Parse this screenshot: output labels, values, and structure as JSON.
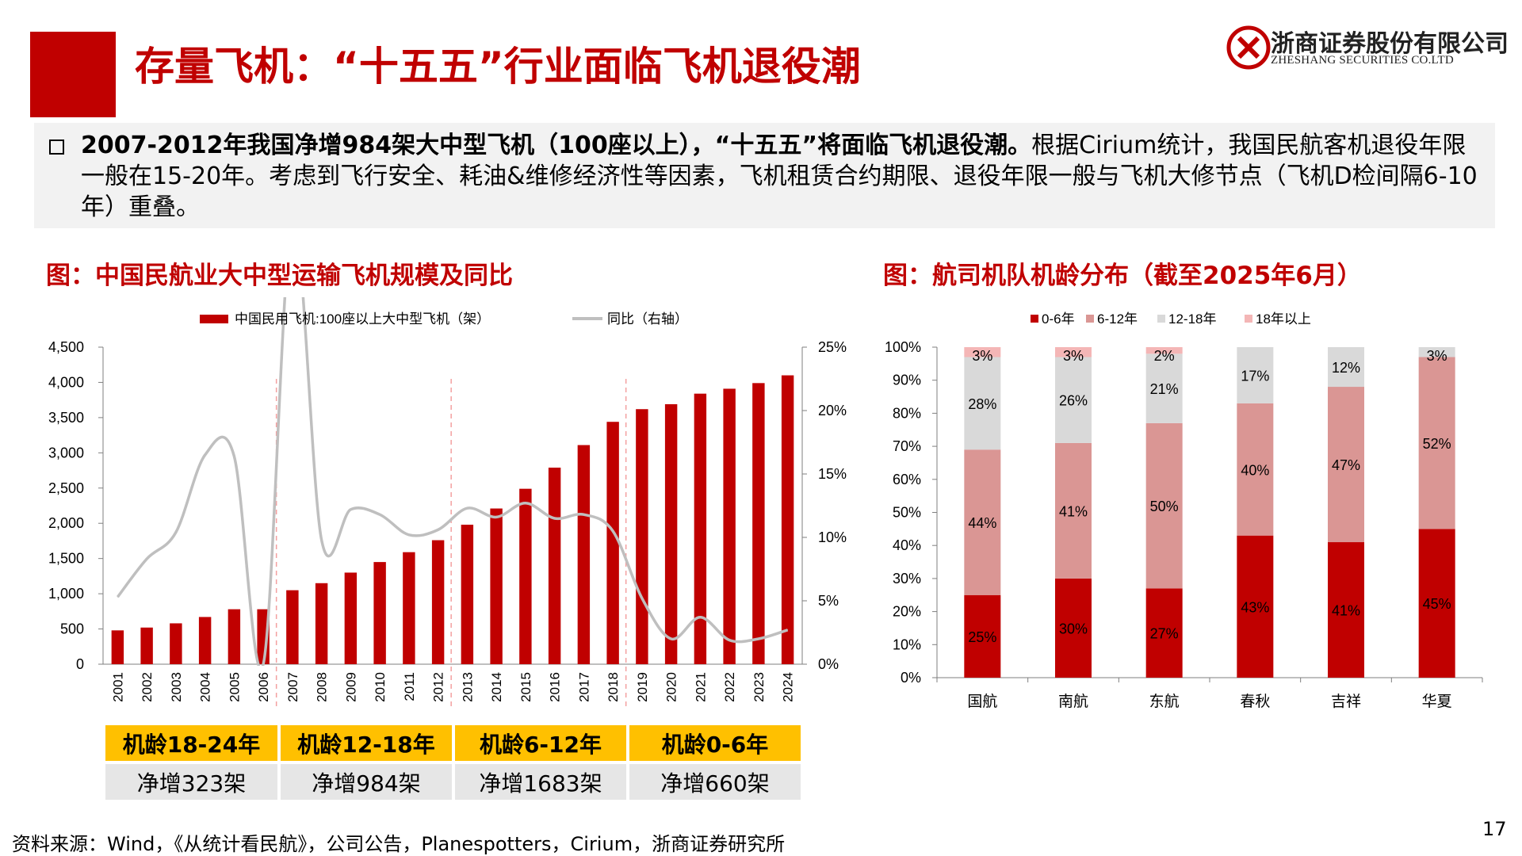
{
  "header": {
    "title": "存量飞机：“十五五”行业面临飞机退役潮",
    "logo_name": "浙商证券股份有限公司",
    "logo_en": "ZHESHANG SECURITIES CO.LTD"
  },
  "summary": {
    "bold": "2007-2012年我国净增984架大中型飞机（100座以上），“十五五”将面临飞机退役潮。",
    "text": "根据Cirium统计，我国民航客机退役年限一般在15-20年。考虑到飞行安全、耗油&维修经济性等因素，飞机租赁合约期限、退役年限一般与飞机大修节点（飞机D检间隔6-10年）重叠。"
  },
  "figure1": {
    "title": "图：中国民航业大中型运输飞机规模及同比",
    "age_groups": [
      {
        "label": "机龄18-24年",
        "net": "净增323架"
      },
      {
        "label": "机龄12-18年",
        "net": "净增984架"
      },
      {
        "label": "机龄6-12年",
        "net": "净增1683架"
      },
      {
        "label": "机龄0-6年",
        "net": "净增660架"
      }
    ]
  },
  "figure2": {
    "title": "图：航司机队机龄分布（截至2025年6月）"
  },
  "chart_data": [
    {
      "type": "bar",
      "title": "",
      "categories": [
        "2001",
        "2002",
        "2003",
        "2004",
        "2005",
        "2006",
        "2007",
        "2008",
        "2009",
        "2010",
        "2011",
        "2012",
        "2013",
        "2014",
        "2015",
        "2016",
        "2017",
        "2018",
        "2019",
        "2020",
        "2021",
        "2022",
        "2023",
        "2024"
      ],
      "series": [
        {
          "name": "中国民用飞机:100座以上大中型飞机（架）",
          "type": "bar",
          "axis": "left",
          "color": "#c00000",
          "values": [
            480,
            520,
            580,
            670,
            780,
            780,
            1050,
            1150,
            1300,
            1450,
            1590,
            1760,
            1980,
            2210,
            2490,
            2790,
            3110,
            3440,
            3620,
            3690,
            3840,
            3910,
            3990,
            4100
          ]
        },
        {
          "name": "同比（右轴）",
          "type": "line",
          "axis": "right",
          "color": "#bfbfbf",
          "values": [
            5.3,
            8.3,
            10.4,
            16.5,
            16.4,
            0.0,
            35.0,
            9.8,
            12.2,
            11.8,
            10.2,
            10.6,
            12.3,
            11.6,
            12.7,
            11.5,
            11.8,
            10.5,
            5.2,
            2.0,
            3.7,
            1.9,
            2.0,
            2.7
          ]
        }
      ],
      "ylim": [
        0,
        4500
      ],
      "yticks": [
        "0",
        "500",
        "1,000",
        "1,500",
        "2,000",
        "2,500",
        "3,000",
        "3,500",
        "4,000",
        "4,500"
      ],
      "y2lim": [
        0,
        25
      ],
      "y2ticks": [
        "0%",
        "5%",
        "10%",
        "15%",
        "20%",
        "25%"
      ],
      "legend_position": "top",
      "grid": false
    },
    {
      "type": "bar",
      "stacked": true,
      "title": "",
      "categories": [
        "国航",
        "南航",
        "东航",
        "春秋",
        "吉祥",
        "华夏"
      ],
      "series": [
        {
          "name": "0-6年",
          "color": "#c00000",
          "values": [
            25,
            30,
            27,
            43,
            41,
            45
          ]
        },
        {
          "name": "6-12年",
          "color": "#da9694",
          "values": [
            44,
            41,
            50,
            40,
            47,
            52
          ]
        },
        {
          "name": "12-18年",
          "color": "#d9d9d9",
          "values": [
            28,
            26,
            21,
            17,
            12,
            3
          ]
        },
        {
          "name": "18年以上",
          "color": "#f4b6b6",
          "values": [
            3,
            3,
            2,
            0,
            0,
            0
          ]
        }
      ],
      "labels": [
        [
          "25%",
          "30%",
          "27%",
          "43%",
          "41%",
          "45%"
        ],
        [
          "44%",
          "41%",
          "50%",
          "40%",
          "47%",
          "52%"
        ],
        [
          "28%",
          "26%",
          "21%",
          "17%",
          "12%",
          "3%"
        ],
        [
          "3%",
          "3%",
          "2%",
          "",
          "",
          ""
        ]
      ],
      "ylim": [
        0,
        100
      ],
      "yticks": [
        "0%",
        "10%",
        "20%",
        "30%",
        "40%",
        "50%",
        "60%",
        "70%",
        "80%",
        "90%",
        "100%"
      ],
      "legend_position": "top",
      "grid": false
    }
  ],
  "footer": {
    "source": "资料来源：Wind，《从统计看民航》，公司公告，Planespotters，Cirium，浙商证券研究所",
    "page_number": "17"
  }
}
